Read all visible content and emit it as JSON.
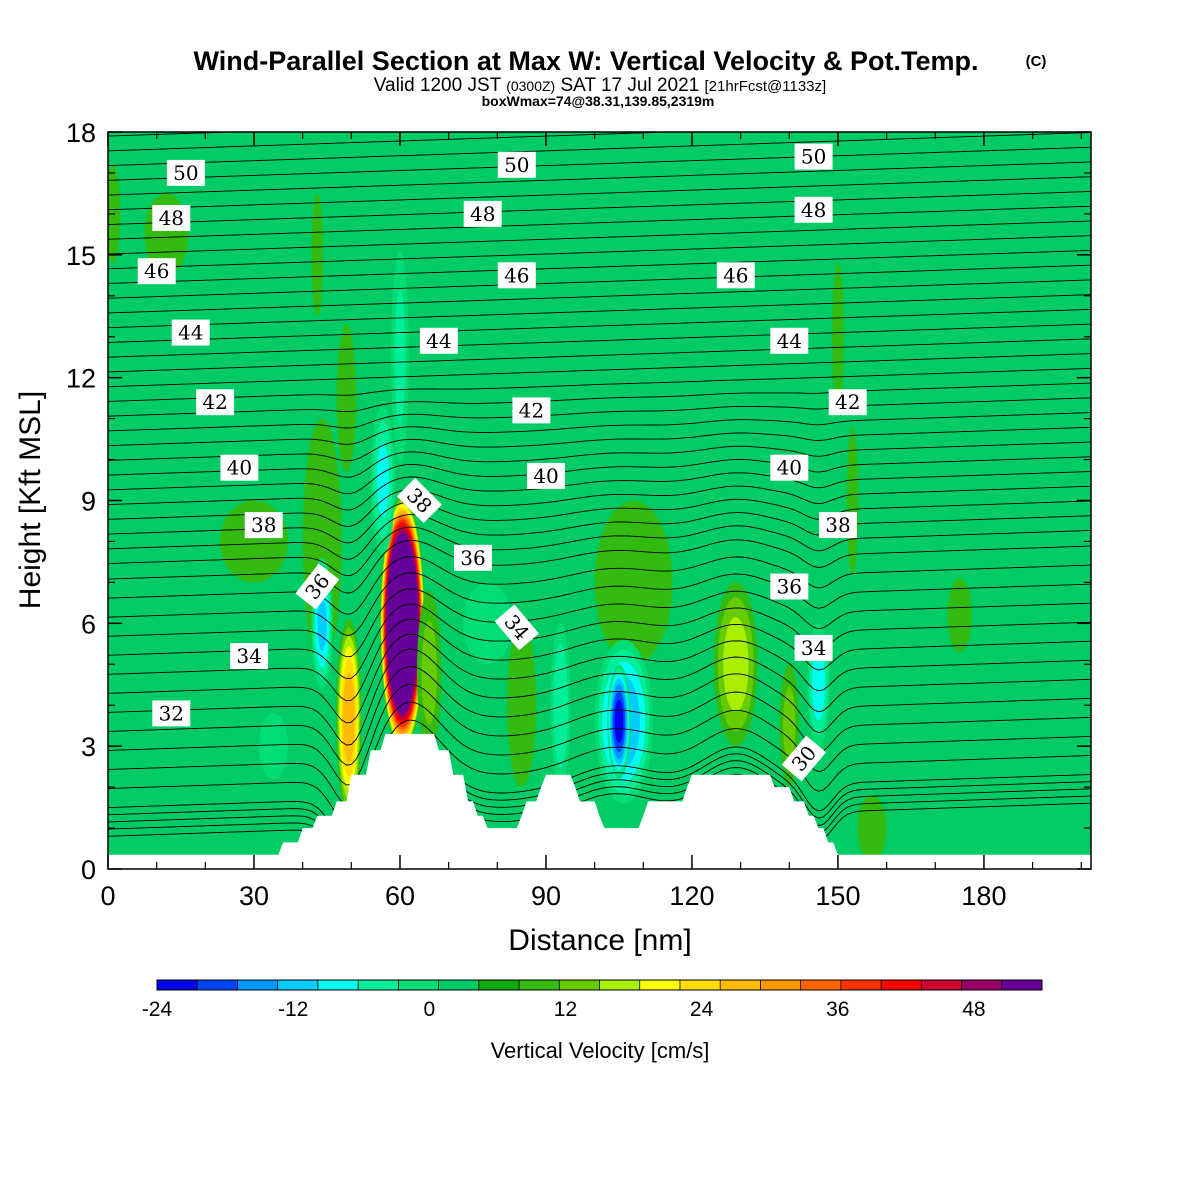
{
  "header": {
    "title": "Wind-Parallel Section at Max W: Vertical Velocity & Pot.Temp.",
    "copyright": "(C)",
    "valid_prefix": "Valid 1200 JST",
    "valid_utc": "(0300Z)",
    "valid_date": "SAT 17 Jul 2021",
    "forecast": "[21hrFcst@1133z]",
    "box_info": "boxWmax=74@38.31,139.85,2319m"
  },
  "chart_data": {
    "type": "heatmap",
    "xlabel": "Distance [nm]",
    "ylabel": "Height [Kft MSL]",
    "xlim": [
      0,
      202
    ],
    "ylim": [
      0,
      18
    ],
    "x_ticks": [
      0,
      30,
      60,
      90,
      120,
      150,
      180
    ],
    "y_ticks": [
      0,
      3,
      6,
      9,
      12,
      15,
      18
    ],
    "background_value": 0,
    "colorbar": {
      "label": "Vertical Velocity [cm/s]",
      "ticks": [
        -24,
        -12,
        0,
        12,
        24,
        36,
        48
      ],
      "bounds": [
        -24,
        -21,
        -18,
        -15,
        -12,
        -9,
        -6,
        -3,
        0,
        3,
        6,
        9,
        12,
        15,
        18,
        21,
        24,
        27,
        30,
        33,
        36,
        39,
        42,
        45,
        48,
        51,
        54
      ],
      "colors": [
        "#0000ee",
        "#0044ff",
        "#0099ff",
        "#00ccff",
        "#00ffee",
        "#00ee99",
        "#00dd77",
        "#00cc66",
        "#11aa11",
        "#33bb11",
        "#66cc00",
        "#aaee00",
        "#ffff00",
        "#ffdd00",
        "#ffbb00",
        "#ff9900",
        "#ff6600",
        "#ff3300",
        "#ff0000",
        "#cc0033",
        "#990066",
        "#660099"
      ]
    },
    "terrain_kft": [
      [
        0,
        0.35
      ],
      [
        35,
        0.35
      ],
      [
        36,
        0.65
      ],
      [
        39,
        0.65
      ],
      [
        40,
        1.0
      ],
      [
        42,
        1.0
      ],
      [
        43,
        1.3
      ],
      [
        46,
        1.3
      ],
      [
        47,
        1.65
      ],
      [
        49,
        1.65
      ],
      [
        50,
        2.3
      ],
      [
        53,
        2.3
      ],
      [
        54,
        2.9
      ],
      [
        56,
        2.9
      ],
      [
        57,
        3.3
      ],
      [
        67,
        3.3
      ],
      [
        68,
        2.9
      ],
      [
        70,
        2.9
      ],
      [
        71,
        2.3
      ],
      [
        73,
        2.3
      ],
      [
        74,
        1.65
      ],
      [
        75,
        1.65
      ],
      [
        76,
        1.3
      ],
      [
        77,
        1.3
      ],
      [
        78,
        1.0
      ],
      [
        84,
        1.0
      ],
      [
        85,
        1.3
      ],
      [
        86,
        1.65
      ],
      [
        88,
        1.65
      ],
      [
        89,
        2.0
      ],
      [
        90,
        2.3
      ],
      [
        95,
        2.3
      ],
      [
        96,
        2.0
      ],
      [
        97,
        1.65
      ],
      [
        100,
        1.65
      ],
      [
        101,
        1.3
      ],
      [
        102,
        1.0
      ],
      [
        109,
        1.0
      ],
      [
        110,
        1.3
      ],
      [
        111,
        1.65
      ],
      [
        118,
        1.65
      ],
      [
        119,
        2.0
      ],
      [
        120,
        2.3
      ],
      [
        136,
        2.3
      ],
      [
        137,
        2.0
      ],
      [
        140,
        2.0
      ],
      [
        141,
        1.65
      ],
      [
        143,
        1.65
      ],
      [
        144,
        1.3
      ],
      [
        145,
        1.3
      ],
      [
        146,
        1.0
      ],
      [
        147,
        1.0
      ],
      [
        148,
        0.65
      ],
      [
        149,
        0.65
      ],
      [
        150,
        0.35
      ],
      [
        202,
        0.35
      ]
    ],
    "w_features": [
      {
        "x": 60.5,
        "y": 6.0,
        "rx": 4.6,
        "ry": 3.1,
        "w": 74
      },
      {
        "x": 49.5,
        "y": 3.7,
        "rx": 2.6,
        "ry": 2.4,
        "w": 20
      },
      {
        "x": 129,
        "y": 5.0,
        "rx": 4.5,
        "ry": 2.0,
        "w": 10
      },
      {
        "x": 66,
        "y": 4.8,
        "rx": 2.5,
        "ry": 2.0,
        "w": 6
      },
      {
        "x": 12,
        "y": 15.5,
        "rx": 4.5,
        "ry": 1.0,
        "w": 3
      },
      {
        "x": 44,
        "y": 8.0,
        "rx": 4.0,
        "ry": 3.0,
        "w": 4
      },
      {
        "x": 49,
        "y": 11.5,
        "rx": 2.0,
        "ry": 1.8,
        "w": 4
      },
      {
        "x": 43,
        "y": 15.0,
        "rx": 1.2,
        "ry": 1.5,
        "w": 3
      },
      {
        "x": 30,
        "y": 8.0,
        "rx": 7.0,
        "ry": 1.0,
        "w": 4
      },
      {
        "x": 150,
        "y": 13.0,
        "rx": 1.2,
        "ry": 1.8,
        "w": 4
      },
      {
        "x": 153,
        "y": 9.0,
        "rx": 1.2,
        "ry": 1.8,
        "w": 4
      },
      {
        "x": 175,
        "y": 6.2,
        "rx": 2.5,
        "ry": 0.9,
        "w": 4
      },
      {
        "x": 108,
        "y": 7.0,
        "rx": 8.0,
        "ry": 2.0,
        "w": 3
      },
      {
        "x": 85,
        "y": 4.0,
        "rx": 3.0,
        "ry": 2.0,
        "w": 3
      },
      {
        "x": 140,
        "y": 3.5,
        "rx": 2.0,
        "ry": 1.5,
        "w": 6
      },
      {
        "x": 1,
        "y": 16.0,
        "rx": 1.5,
        "ry": 1.2,
        "w": 4
      },
      {
        "x": 157,
        "y": 1.0,
        "rx": 3.0,
        "ry": 0.8,
        "w": 4
      },
      {
        "x": 106,
        "y": 3.6,
        "rx": 6.0,
        "ry": 2.0,
        "w": -14
      },
      {
        "x": 105,
        "y": 3.6,
        "rx": 2.4,
        "ry": 1.4,
        "w": -22
      },
      {
        "x": 44,
        "y": 6.0,
        "rx": 2.2,
        "ry": 1.6,
        "w": -12
      },
      {
        "x": 56.5,
        "y": 9.5,
        "rx": 2.5,
        "ry": 1.8,
        "w": -9
      },
      {
        "x": 60,
        "y": 12.5,
        "rx": 1.8,
        "ry": 2.6,
        "w": -6
      },
      {
        "x": 146,
        "y": 4.5,
        "rx": 2.3,
        "ry": 1.5,
        "w": -10
      },
      {
        "x": 93,
        "y": 4.0,
        "rx": 2.0,
        "ry": 2.0,
        "w": -8
      },
      {
        "x": 34,
        "y": 3.0,
        "rx": 3.0,
        "ry": 0.8,
        "w": -5
      },
      {
        "x": 78,
        "y": 6.0,
        "rx": 5.0,
        "ry": 1.0,
        "w": -4
      }
    ],
    "theta_labels": [
      {
        "text": "50",
        "x": 16,
        "y": 17.0,
        "angle": 0
      },
      {
        "text": "50",
        "x": 84,
        "y": 17.2,
        "angle": 0
      },
      {
        "text": "50",
        "x": 145,
        "y": 17.4,
        "angle": 0
      },
      {
        "text": "48",
        "x": 13,
        "y": 15.9,
        "angle": 0
      },
      {
        "text": "48",
        "x": 77,
        "y": 16.0,
        "angle": 0
      },
      {
        "text": "48",
        "x": 145,
        "y": 16.1,
        "angle": 0
      },
      {
        "text": "46",
        "x": 10,
        "y": 14.6,
        "angle": 0
      },
      {
        "text": "46",
        "x": 84,
        "y": 14.5,
        "angle": 0
      },
      {
        "text": "46",
        "x": 129,
        "y": 14.5,
        "angle": 0
      },
      {
        "text": "44",
        "x": 17,
        "y": 13.1,
        "angle": 0
      },
      {
        "text": "44",
        "x": 68,
        "y": 12.9,
        "angle": 0
      },
      {
        "text": "44",
        "x": 140,
        "y": 12.9,
        "angle": 0
      },
      {
        "text": "42",
        "x": 22,
        "y": 11.4,
        "angle": 0
      },
      {
        "text": "42",
        "x": 87,
        "y": 11.2,
        "angle": 0
      },
      {
        "text": "42",
        "x": 152,
        "y": 11.4,
        "angle": 0
      },
      {
        "text": "40",
        "x": 27,
        "y": 9.8,
        "angle": 0
      },
      {
        "text": "40",
        "x": 90,
        "y": 9.6,
        "angle": 0
      },
      {
        "text": "40",
        "x": 140,
        "y": 9.8,
        "angle": 0
      },
      {
        "text": "38",
        "x": 32,
        "y": 8.4,
        "angle": 0
      },
      {
        "text": "38",
        "x": 64,
        "y": 9.0,
        "angle": 45
      },
      {
        "text": "38",
        "x": 150,
        "y": 8.4,
        "angle": 0
      },
      {
        "text": "36",
        "x": 43,
        "y": 6.9,
        "angle": -52
      },
      {
        "text": "36",
        "x": 75,
        "y": 7.6,
        "angle": 0
      },
      {
        "text": "36",
        "x": 140,
        "y": 6.9,
        "angle": 0
      },
      {
        "text": "34",
        "x": 29,
        "y": 5.2,
        "angle": 0
      },
      {
        "text": "34",
        "x": 84,
        "y": 5.9,
        "angle": 50
      },
      {
        "text": "34",
        "x": 145,
        "y": 5.4,
        "angle": 0
      },
      {
        "text": "32",
        "x": 13,
        "y": 3.8,
        "angle": 0
      },
      {
        "text": "30",
        "x": 143,
        "y": 2.7,
        "angle": -50
      }
    ]
  }
}
